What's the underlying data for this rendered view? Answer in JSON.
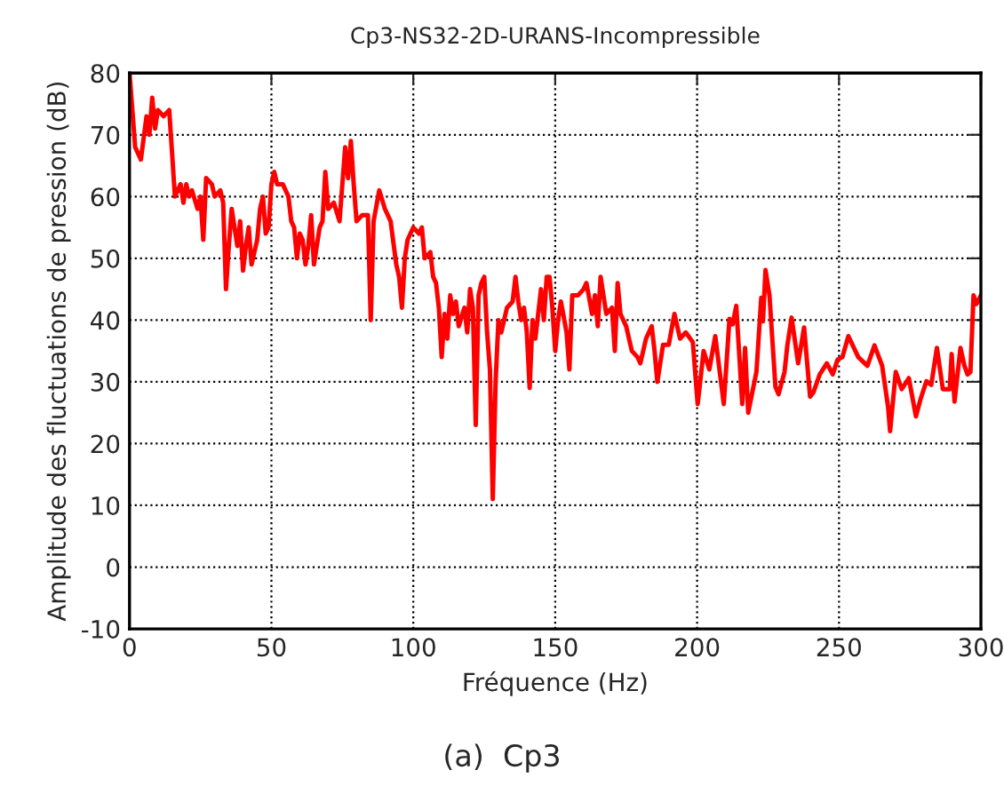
{
  "chart_data": {
    "type": "line",
    "title": "Cp3-NS32-2D-URANS-Incompressible",
    "xlabel": "Fréquence (Hz)",
    "ylabel": "Amplitude des fluctuations de pression (dB)",
    "annotations": [
      "(a)  Cp3"
    ],
    "xlim": [
      0,
      300
    ],
    "ylim": [
      -10,
      80
    ],
    "xticks": [
      0,
      50,
      100,
      150,
      200,
      250,
      300
    ],
    "yticks": [
      -10,
      0,
      10,
      20,
      30,
      40,
      50,
      60,
      70,
      80
    ],
    "grid": true,
    "legend": false,
    "line_style": "solid",
    "marker": "none",
    "series": [
      {
        "color": "#ff0000",
        "x": [
          0,
          2,
          4,
          6,
          7,
          8,
          9,
          10,
          12,
          14,
          16,
          18,
          19,
          20,
          21,
          22,
          24,
          25,
          26,
          27,
          29,
          30,
          32,
          33,
          34,
          35,
          36,
          38,
          39,
          40,
          41,
          42,
          43,
          45,
          46,
          47,
          48,
          49,
          50,
          51,
          52,
          54,
          56,
          57,
          58,
          59,
          60,
          61,
          62,
          63,
          64,
          65,
          66,
          67,
          68,
          69,
          70,
          72,
          74,
          75,
          76,
          77,
          78,
          79,
          80,
          82,
          84,
          85,
          86,
          88,
          90,
          92,
          94,
          95,
          96,
          97,
          98,
          100,
          102,
          103,
          104,
          106,
          107,
          108,
          109,
          110,
          111,
          112,
          113,
          114,
          115,
          116,
          118,
          119,
          120,
          121,
          122,
          123,
          124,
          125,
          126,
          127,
          128,
          129,
          130,
          131,
          133,
          135,
          136,
          137,
          138,
          139,
          140,
          141,
          142,
          143,
          145,
          146,
          147,
          148,
          149,
          150,
          151,
          152,
          154,
          155,
          156,
          158,
          160,
          161,
          163,
          164,
          165,
          166,
          167,
          168,
          170,
          171,
          172,
          173,
          175,
          177,
          179,
          180,
          182,
          184,
          185,
          186,
          188,
          190,
          192,
          194,
          196,
          198.5,
          200.2,
          202.3,
          204.3,
          206.4,
          209.4,
          211.4,
          212.5,
          213.8,
          215.9,
          216.9,
          218,
          220.9,
          222.6,
          223.2,
          224.1,
          225.5,
          227.6,
          228.7,
          230.8,
          231.8,
          233.3,
          235.6,
          237.7,
          239.8,
          241,
          243.2,
          245.7,
          247.8,
          249.5,
          251.2,
          253.3,
          256.8,
          260,
          262.5,
          265.2,
          267.3,
          268,
          270,
          272.1,
          274.6,
          277.1,
          278.8,
          280.8,
          282.5,
          284.5,
          286.6,
          289,
          289.7,
          290.7,
          292.8,
          294.2,
          295.3,
          296.3,
          297.4,
          298.4,
          300
        ],
        "values": [
          80,
          68,
          66,
          73,
          70,
          76,
          71,
          74,
          73,
          74,
          60,
          62,
          59,
          62,
          60,
          61,
          58,
          60,
          53,
          63,
          62,
          60,
          61,
          59,
          45,
          52,
          58,
          52,
          56,
          48,
          52,
          55,
          49,
          53,
          58,
          60,
          54,
          55,
          62,
          64,
          62,
          62,
          60,
          56,
          55,
          50,
          54,
          53,
          49,
          52,
          57,
          49,
          52,
          55,
          56,
          64,
          58,
          59,
          56,
          62,
          68,
          63,
          69,
          62,
          56,
          57,
          57,
          40,
          56,
          61,
          58,
          56,
          49,
          47,
          42,
          50,
          53,
          55,
          54,
          55,
          50,
          51,
          47,
          46,
          42,
          34,
          41,
          37,
          44,
          41,
          43,
          39,
          42,
          38,
          45,
          42,
          23,
          44,
          46,
          47,
          38,
          32,
          11,
          30,
          40,
          38,
          42,
          43,
          47,
          43,
          40,
          42,
          38,
          29,
          40,
          37,
          45,
          40,
          47,
          47,
          42,
          35,
          40,
          43,
          38,
          32,
          44,
          44,
          45,
          46,
          41,
          44,
          39,
          47,
          44,
          41,
          42,
          35,
          46,
          41,
          39,
          35,
          34,
          33,
          37,
          39,
          35,
          30,
          36,
          36,
          41,
          37,
          38,
          36.4,
          26.4,
          35,
          32,
          37.4,
          26.4,
          40.2,
          39.3,
          42.3,
          26.4,
          35.5,
          25,
          31.6,
          43.6,
          39.8,
          48.1,
          44,
          29.2,
          28,
          31.6,
          35.9,
          40.4,
          33,
          38.8,
          27.6,
          28.3,
          31.2,
          33,
          31.2,
          33.6,
          34,
          37.4,
          34,
          32.6,
          35.9,
          32.6,
          25.9,
          22,
          31.6,
          28.8,
          30.6,
          24.4,
          27.3,
          30.1,
          29.5,
          35.5,
          28.8,
          28.8,
          34.5,
          26.8,
          35.5,
          32.6,
          31.2,
          31.6,
          44,
          42.6,
          44
        ]
      }
    ]
  }
}
